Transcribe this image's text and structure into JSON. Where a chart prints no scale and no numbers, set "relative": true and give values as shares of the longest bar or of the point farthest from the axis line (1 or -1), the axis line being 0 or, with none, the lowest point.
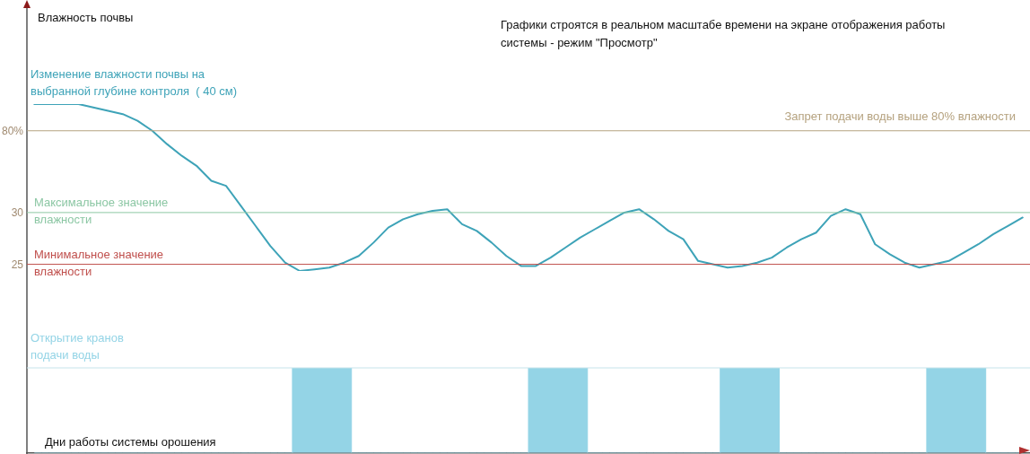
{
  "chart_data": [
    {
      "type": "line",
      "relative": true,
      "marker": "none",
      "legend": false,
      "grid": false,
      "title": "Графики строятся в реальном масштабе времени на экране отображения работы системы - режим \"Просмотр\"",
      "ylabel": "Влажность почвы",
      "categories": [
        null,
        null,
        null,
        null,
        null,
        null,
        null,
        null,
        null,
        null,
        null,
        null,
        null,
        null,
        null,
        null,
        null,
        null,
        null,
        null,
        null,
        null,
        null,
        null,
        null,
        null,
        null,
        null,
        null,
        null,
        null,
        null,
        null,
        null,
        null,
        null,
        null,
        null,
        null,
        null,
        null,
        null,
        null,
        null,
        null,
        null,
        null,
        null,
        null,
        null,
        null,
        null,
        null,
        null,
        null,
        null,
        null,
        null,
        null,
        null,
        null,
        null,
        null,
        null,
        null,
        null,
        null,
        null
      ],
      "series": [
        {
          "type": "line",
          "name": "Изменение влажности почвы на выбранной глубине контроля  ( 40 см)",
          "color": "#3ea3b8",
          "values": [
            1.0,
            1.0,
            1.0,
            1.0,
            0.98,
            0.96,
            0.94,
            0.9,
            0.84,
            0.76,
            0.69,
            0.63,
            0.54,
            0.51,
            0.39,
            0.27,
            0.15,
            0.05,
            0.0,
            0.01,
            0.02,
            0.05,
            0.09,
            0.17,
            0.26,
            0.31,
            0.34,
            0.36,
            0.37,
            0.28,
            0.24,
            0.17,
            0.09,
            0.03,
            0.03,
            0.08,
            0.14,
            0.2,
            0.25,
            0.3,
            0.35,
            0.37,
            0.31,
            0.24,
            0.19,
            0.06,
            0.04,
            0.02,
            0.03,
            0.05,
            0.08,
            0.14,
            0.19,
            0.23,
            0.33,
            0.37,
            0.34,
            0.16,
            0.1,
            0.05,
            0.02,
            0.04,
            0.06,
            0.11,
            0.16,
            0.22,
            0.27,
            0.32
          ]
        }
      ],
      "ref_lines": [
        {
          "axis": "y",
          "value": 0.84,
          "label": "Запрет подачи воды выше 80% влажности",
          "color": "#b5a27f"
        },
        {
          "axis": "y",
          "value": 0.35,
          "label": "Максимальное значение влажности",
          "color": "#8cc7a4"
        },
        {
          "axis": "y",
          "value": 0.04,
          "label": "Минимальное значение влажности",
          "color": "#c0504d"
        }
      ],
      "annotations": [
        "80%",
        "30",
        "25"
      ]
    },
    {
      "type": "area",
      "relative": true,
      "legend": false,
      "grid": false,
      "xlabel": "Дни работы системы орошения",
      "categories": [
        null,
        null,
        null,
        null,
        null,
        null,
        null,
        null,
        null,
        null,
        null,
        null,
        null,
        null,
        null,
        null,
        null,
        null,
        null,
        null,
        null,
        null,
        null,
        null,
        null,
        null,
        null,
        null,
        null,
        null,
        null,
        null,
        null,
        null,
        null,
        null,
        null,
        null,
        null,
        null,
        null,
        null,
        null,
        null,
        null,
        null,
        null,
        null,
        null,
        null,
        null,
        null,
        null,
        null,
        null,
        null,
        null,
        null,
        null,
        null,
        null,
        null,
        null,
        null,
        null,
        null,
        null,
        null
      ],
      "series": [
        {
          "type": "area",
          "name": "Открытие кранов подачи воды",
          "color": "#94d4e6",
          "values": [
            0,
            0,
            0,
            0,
            0,
            0,
            0,
            0,
            0,
            0,
            0,
            0,
            0,
            0,
            0,
            0,
            0,
            0,
            1,
            1,
            1,
            1,
            0,
            0,
            0,
            0,
            0,
            0,
            0,
            0,
            0,
            0,
            0,
            0,
            1,
            1,
            1,
            1,
            0,
            0,
            0,
            0,
            0,
            0,
            0,
            0,
            0,
            1,
            1,
            1,
            1,
            0,
            0,
            0,
            0,
            0,
            0,
            0,
            0,
            0,
            0,
            1,
            1,
            1,
            1,
            0,
            0,
            0
          ]
        }
      ],
      "ref_lines": [
        {
          "axis": "y",
          "value": 1,
          "color": "#c6e3ea"
        }
      ]
    }
  ]
}
